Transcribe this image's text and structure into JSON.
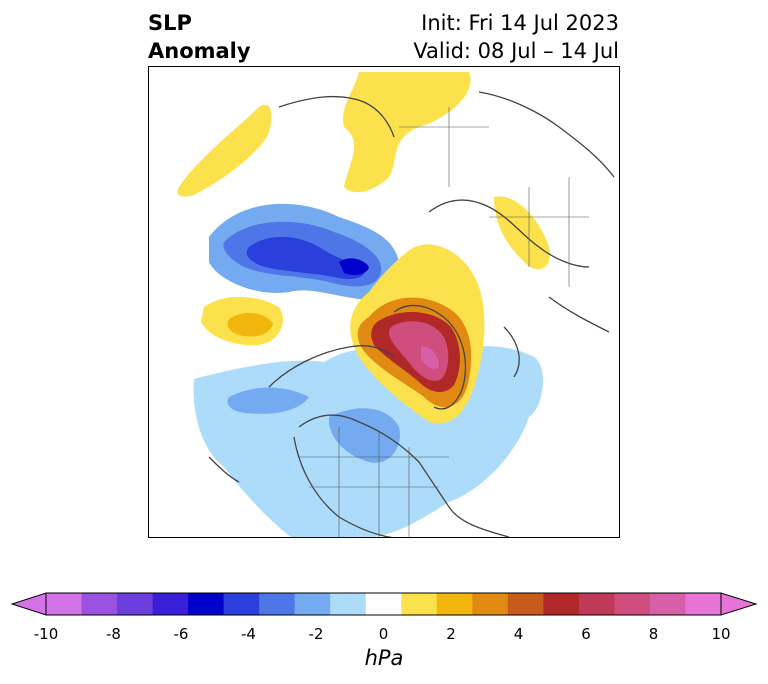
{
  "title": {
    "left_line1": "SLP",
    "left_line2": "Anomaly",
    "right_line1": "Init: Fri 14 Jul 2023",
    "right_line2": "Valid: 08 Jul – 14 Jul"
  },
  "colorbar": {
    "units": "hPa",
    "tick_labels": [
      "-10",
      "-8",
      "-6",
      "-4",
      "-2",
      "0",
      "2",
      "4",
      "6",
      "8",
      "10"
    ],
    "colors": [
      "#d473e8",
      "#9c52e0",
      "#6a3ddc",
      "#3a1fd8",
      "#0000cc",
      "#2a3fdc",
      "#4f76e6",
      "#74aaf0",
      "#addcfa",
      "#ffffff",
      "#fbe24d",
      "#f0b60c",
      "#e08a12",
      "#c85a1c",
      "#b02828",
      "#c03a58",
      "#d04e7e",
      "#d65fa8",
      "#e873d6"
    ]
  },
  "map": {
    "projection": "north polar stereographic",
    "colors": {
      "ocean": "#ffffff",
      "coastline": "#444444"
    }
  }
}
